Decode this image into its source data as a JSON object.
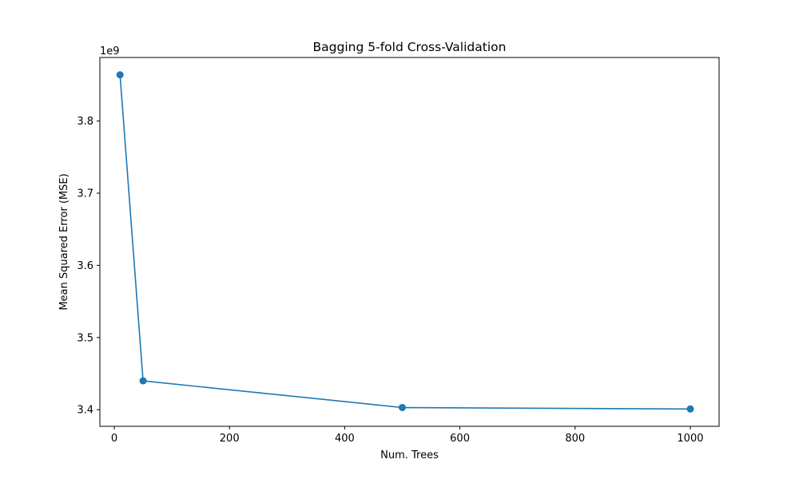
{
  "chart_data": {
    "type": "line",
    "title": "Bagging 5-fold Cross-Validation",
    "xlabel": "Num. Trees",
    "ylabel": "Mean Squared Error (MSE)",
    "y_offset_label": "1e9",
    "y_scale": 1000000000,
    "xlim": [
      -25,
      1050
    ],
    "ylim": [
      3.377,
      3.888
    ],
    "x_ticks": [
      0,
      200,
      400,
      600,
      800,
      1000
    ],
    "y_ticks": [
      3.4,
      3.5,
      3.6,
      3.7,
      3.8
    ],
    "grid": false,
    "legend": "none",
    "series": [
      {
        "x": [
          10,
          50,
          500,
          1000
        ],
        "values": [
          3.864,
          3.44,
          3.403,
          3.401
        ],
        "color": "#1f77b4",
        "marker": "circle"
      }
    ]
  }
}
